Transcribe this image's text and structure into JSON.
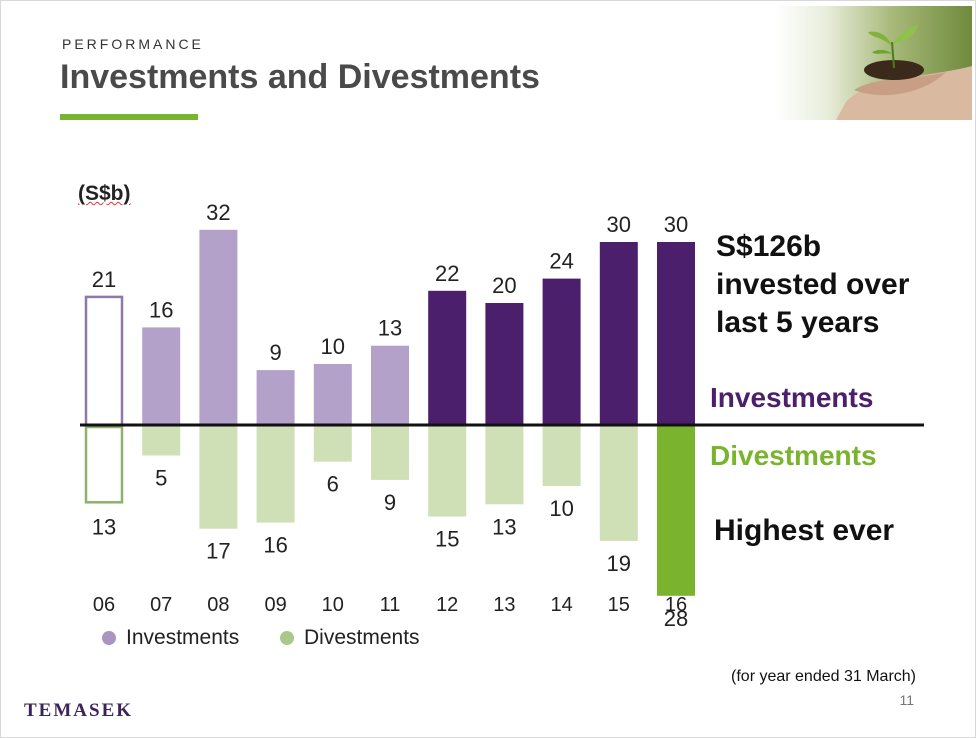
{
  "header": {
    "section": "PERFORMANCE",
    "title": "Investments and Divestments"
  },
  "colors": {
    "investments_past": "#b4a1c9",
    "investments_recent": "#4b1f6b",
    "divestments": "#cfdfb6",
    "divestments_highlight": "#7ab32e",
    "accent_green": "#7ab32e",
    "baseline": "#111111"
  },
  "chart_data": {
    "type": "bar",
    "unit_label": "(S$b)",
    "categories": [
      "06",
      "07",
      "08",
      "09",
      "10",
      "11",
      "12",
      "13",
      "14",
      "15",
      "16"
    ],
    "series": [
      {
        "name": "Investments",
        "values": [
          21,
          16,
          32,
          9,
          10,
          13,
          22,
          20,
          24,
          30,
          30
        ]
      },
      {
        "name": "Divestments",
        "values": [
          13,
          5,
          17,
          16,
          6,
          9,
          15,
          13,
          10,
          19,
          28
        ]
      }
    ],
    "ylim": [
      -28,
      32
    ],
    "legend_position": "bottom-left"
  },
  "annotations": {
    "invested_summary": [
      "S$126b",
      "invested over",
      "last 5 years"
    ],
    "investments_label": "Investments",
    "divestments_label": "Divestments",
    "highest_ever": "Highest ever"
  },
  "legend": {
    "investments": "Investments",
    "divestments": "Divestments"
  },
  "footer": {
    "note": "(for year ended 31 March)",
    "page_number": "11",
    "logo_text": "TEMASEK"
  },
  "images": {
    "header_photo": "hands-holding-seedling"
  }
}
